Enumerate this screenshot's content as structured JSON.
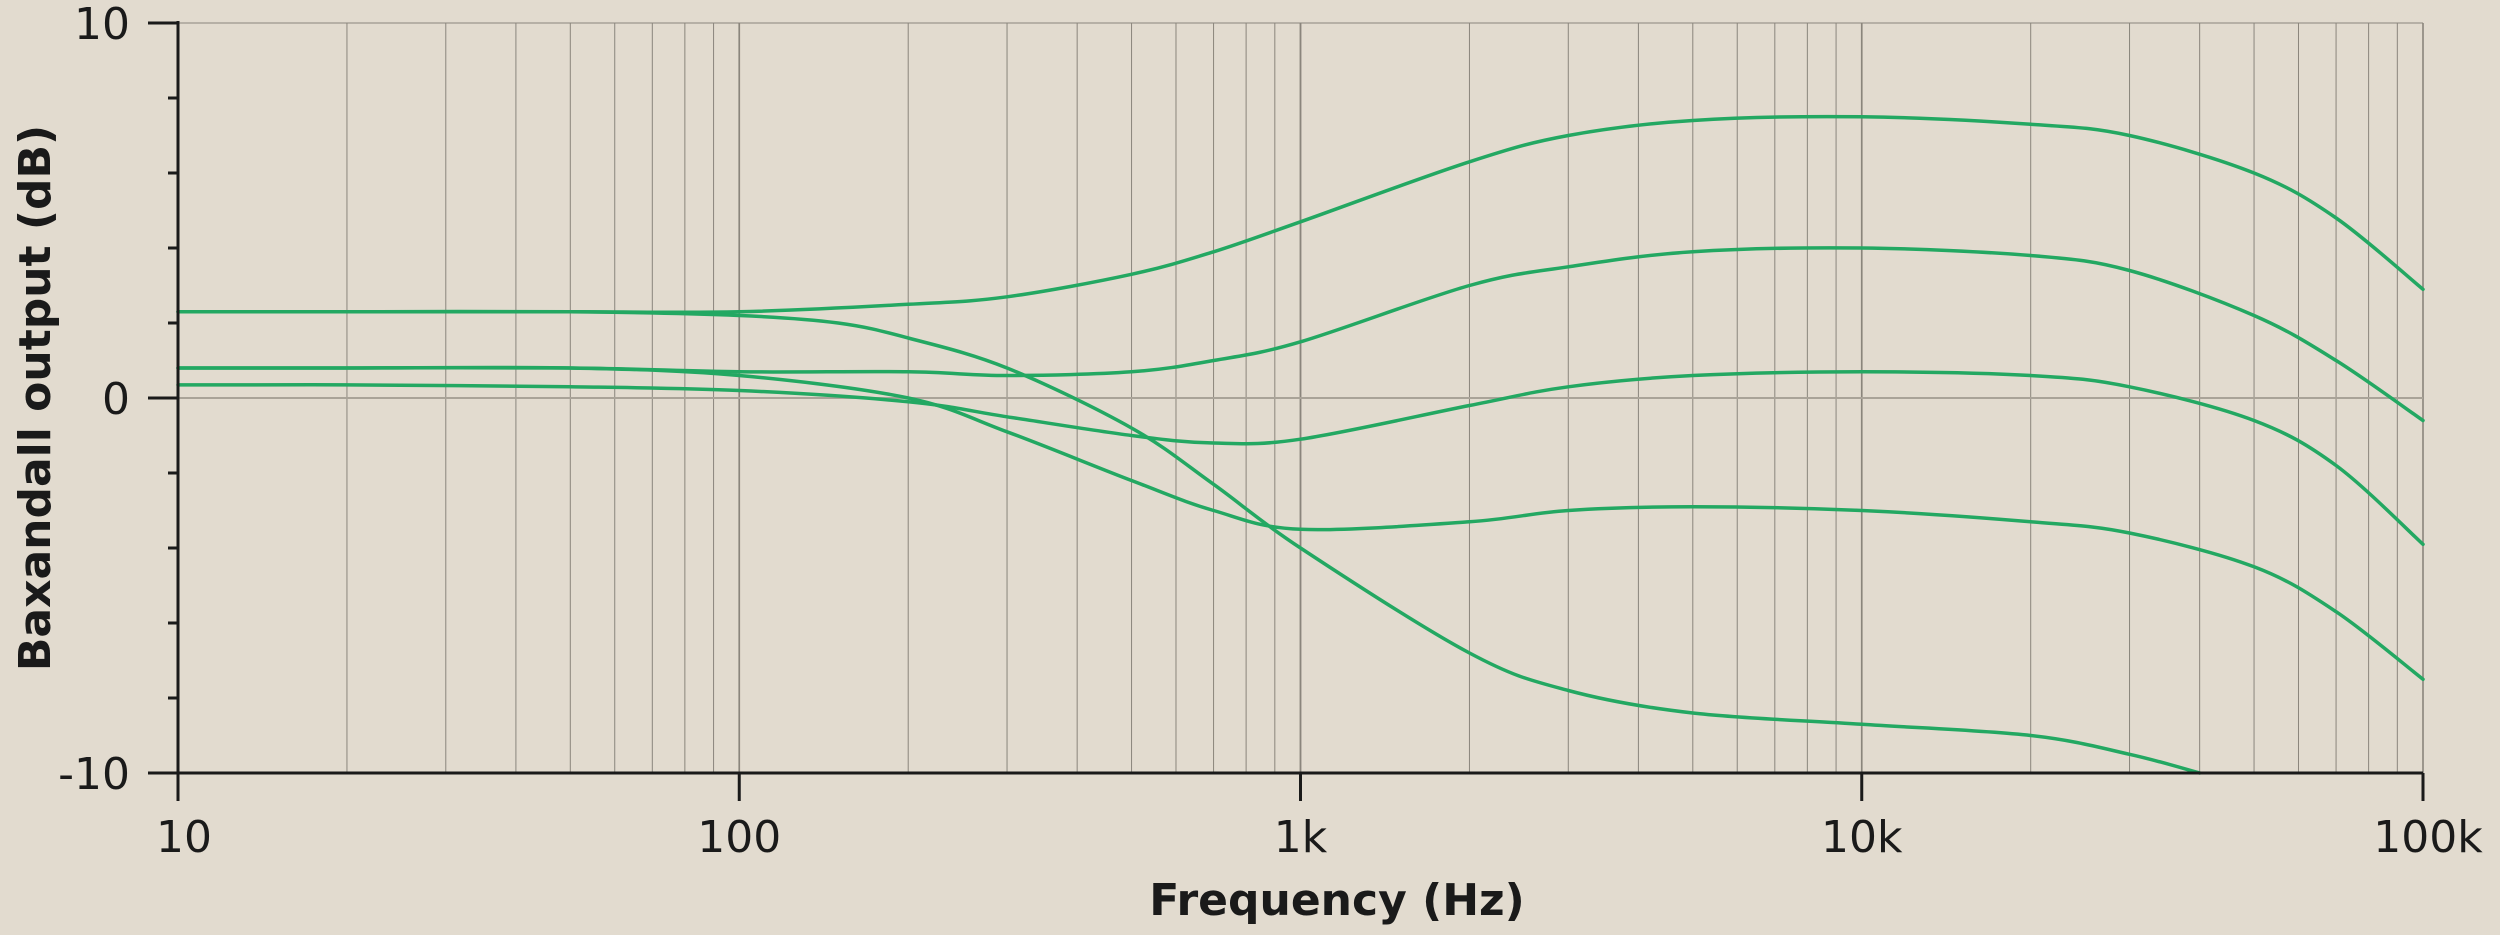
{
  "chart_data": {
    "type": "line",
    "title": "",
    "xlabel": "Frequency (Hz)",
    "ylabel": "Baxandall output (dB)",
    "x_scale": "log",
    "xlim": [
      10,
      100000
    ],
    "ylim": [
      -10,
      10
    ],
    "grid": "vertical decade and sub-decade lines, zero line",
    "x_ticks": [
      {
        "value": 10,
        "label": "10"
      },
      {
        "value": 100,
        "label": "100"
      },
      {
        "value": 1000,
        "label": "1k"
      },
      {
        "value": 10000,
        "label": "10k"
      },
      {
        "value": 100000,
        "label": "100k"
      }
    ],
    "y_ticks": [
      {
        "value": 10,
        "label": "10"
      },
      {
        "value": 0,
        "label": "0"
      },
      {
        "value": -10,
        "label": "-10"
      }
    ],
    "colors": {
      "background": "#e2dbcf",
      "series": "#23a862",
      "axis": "#1a1a1a",
      "grid": "#8a857c"
    },
    "series": [
      {
        "x": [
          10,
          20,
          50,
          100,
          200,
          300,
          500,
          700,
          1000,
          2000,
          3000,
          5000,
          10000,
          20000,
          30000,
          50000,
          70000,
          100000
        ],
        "y": [
          2.3,
          2.3,
          2.3,
          2.3,
          2.5,
          2.7,
          3.3,
          3.9,
          4.7,
          6.3,
          7.0,
          7.4,
          7.5,
          7.3,
          7.0,
          6.0,
          4.8,
          2.9
        ]
      },
      {
        "x": [
          10,
          20,
          50,
          100,
          200,
          300,
          500,
          700,
          1000,
          2000,
          3000,
          5000,
          10000,
          20000,
          30000,
          50000,
          70000,
          100000
        ],
        "y": [
          0.8,
          0.8,
          0.8,
          0.7,
          0.7,
          0.6,
          0.7,
          1.0,
          1.5,
          3.0,
          3.5,
          3.9,
          4.0,
          3.8,
          3.4,
          2.2,
          1.0,
          -0.6
        ]
      },
      {
        "x": [
          10,
          20,
          50,
          100,
          200,
          300,
          500,
          700,
          1000,
          2000,
          3000,
          5000,
          10000,
          20000,
          30000,
          50000,
          70000,
          100000
        ],
        "y": [
          0.35,
          0.35,
          0.3,
          0.2,
          -0.1,
          -0.5,
          -1.0,
          -1.2,
          -1.1,
          -0.2,
          0.3,
          0.6,
          0.7,
          0.6,
          0.3,
          -0.6,
          -1.8,
          -3.9
        ]
      },
      {
        "x": [
          10,
          20,
          50,
          100,
          200,
          300,
          500,
          700,
          1000,
          2000,
          3000,
          5000,
          10000,
          20000,
          30000,
          50000,
          70000,
          100000
        ],
        "y": [
          0.8,
          0.8,
          0.8,
          0.6,
          0.0,
          -0.9,
          -2.2,
          -3.0,
          -3.5,
          -3.3,
          -3.0,
          -2.9,
          -3.0,
          -3.3,
          -3.6,
          -4.5,
          -5.7,
          -7.5
        ]
      },
      {
        "x": [
          10,
          20,
          50,
          100,
          150,
          200,
          300,
          500,
          700,
          1000,
          2000,
          3000,
          5000,
          10000,
          20000,
          30000,
          40000
        ],
        "y": [
          2.3,
          2.3,
          2.3,
          2.2,
          2.0,
          1.6,
          0.8,
          -0.8,
          -2.3,
          -4.0,
          -6.8,
          -7.8,
          -8.4,
          -8.7,
          -9.0,
          -9.5,
          -10.0
        ]
      }
    ]
  }
}
